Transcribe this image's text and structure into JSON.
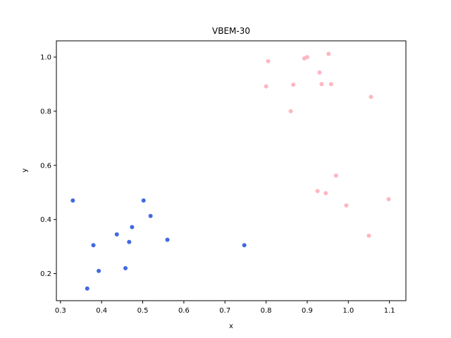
{
  "chart_data": {
    "type": "scatter",
    "title": "VBEM-30",
    "xlabel": "x",
    "ylabel": "y",
    "xlim": [
      0.29,
      1.14
    ],
    "ylim": [
      0.1,
      1.06
    ],
    "xticks": [
      0.3,
      0.4,
      0.5,
      0.6,
      0.7,
      0.8,
      0.9,
      1.0,
      1.1
    ],
    "yticks": [
      0.2,
      0.4,
      0.6,
      0.8,
      1.0
    ],
    "grid": false,
    "series": [
      {
        "color": "#4169e1",
        "points": [
          [
            0.33,
            0.47
          ],
          [
            0.38,
            0.305
          ],
          [
            0.393,
            0.21
          ],
          [
            0.365,
            0.145
          ],
          [
            0.437,
            0.345
          ],
          [
            0.458,
            0.22
          ],
          [
            0.467,
            0.317
          ],
          [
            0.474,
            0.372
          ],
          [
            0.502,
            0.47
          ],
          [
            0.519,
            0.413
          ],
          [
            0.56,
            0.325
          ],
          [
            0.747,
            0.305
          ]
        ]
      },
      {
        "color": "#ffb6c1",
        "points": [
          [
            0.8,
            0.892
          ],
          [
            0.805,
            0.985
          ],
          [
            0.86,
            0.8
          ],
          [
            0.866,
            0.898
          ],
          [
            0.893,
            0.995
          ],
          [
            0.9,
            1.0
          ],
          [
            0.93,
            0.943
          ],
          [
            0.935,
            0.9
          ],
          [
            0.952,
            1.012
          ],
          [
            0.958,
            0.9
          ],
          [
            1.055,
            0.853
          ],
          [
            0.925,
            0.505
          ],
          [
            0.945,
            0.497
          ],
          [
            0.97,
            0.562
          ],
          [
            0.995,
            0.452
          ],
          [
            1.05,
            0.34
          ],
          [
            1.098,
            0.475
          ]
        ]
      }
    ]
  }
}
